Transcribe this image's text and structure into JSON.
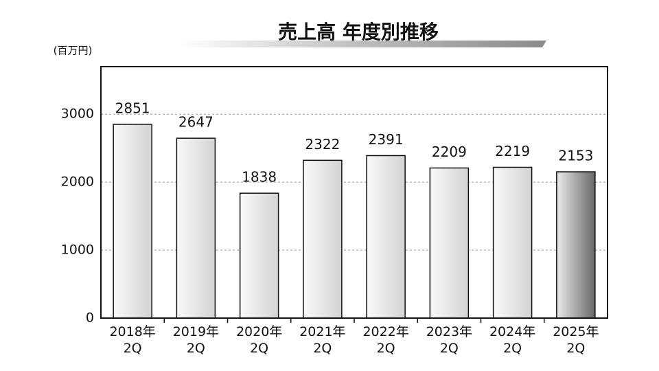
{
  "chart_data": {
    "type": "bar",
    "title": "売上高 年度別推移",
    "y_label": "(百万円)",
    "categories": [
      "2018年\n2Q",
      "2019年\n2Q",
      "2020年\n2Q",
      "2021年\n2Q",
      "2022年\n2Q",
      "2023年\n2Q",
      "2024年\n2Q",
      "2025年\n2Q"
    ],
    "values": [
      2851,
      2647,
      1838,
      2322,
      2391,
      2209,
      2219,
      2153
    ],
    "colors": [
      "#d4d4d4",
      "#d4d4d4",
      "#d4d4d4",
      "#d4d4d4",
      "#d4d4d4",
      "#d4d4d4",
      "#d4d4d4",
      "#6a6a6a"
    ],
    "ylim": [
      0,
      3700
    ],
    "yticks": [
      0,
      1000,
      2000,
      3000
    ],
    "grid": true
  }
}
